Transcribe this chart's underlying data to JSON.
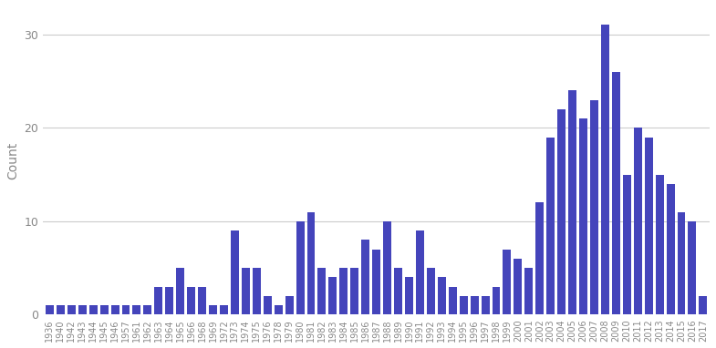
{
  "years": [
    1936,
    1940,
    1942,
    1943,
    1944,
    1945,
    1946,
    1957,
    1961,
    1962,
    1963,
    1964,
    1965,
    1966,
    1968,
    1969,
    1972,
    1973,
    1974,
    1975,
    1976,
    1978,
    1979,
    1980,
    1981,
    1982,
    1983,
    1984,
    1985,
    1986,
    1987,
    1988,
    1989,
    1990,
    1991,
    1992,
    1993,
    1994,
    1995,
    1996,
    1997,
    1998,
    1999,
    2000,
    2001,
    2002,
    2003,
    2004,
    2005,
    2006,
    2007,
    2008,
    2009,
    2010,
    2011,
    2012,
    2013,
    2014,
    2015,
    2016,
    2017
  ],
  "counts": [
    1,
    1,
    1,
    1,
    1,
    1,
    1,
    1,
    1,
    1,
    3,
    3,
    5,
    3,
    3,
    1,
    1,
    9,
    5,
    5,
    2,
    1,
    2,
    10,
    11,
    5,
    4,
    5,
    5,
    8,
    7,
    10,
    5,
    4,
    9,
    5,
    4,
    3,
    2,
    2,
    2,
    3,
    7,
    6,
    5,
    12,
    19,
    22,
    24,
    21,
    23,
    31,
    26,
    15,
    20,
    19,
    15,
    14,
    11,
    10,
    2
  ],
  "bar_color": "#4444bb",
  "ylabel": "Count",
  "ylim": [
    0,
    33
  ],
  "yticks": [
    0,
    10,
    20,
    30
  ],
  "background_color": "#ffffff",
  "grid_color": "#cccccc",
  "tick_label_color": "#888888",
  "tick_label_fontsize": 7.0
}
